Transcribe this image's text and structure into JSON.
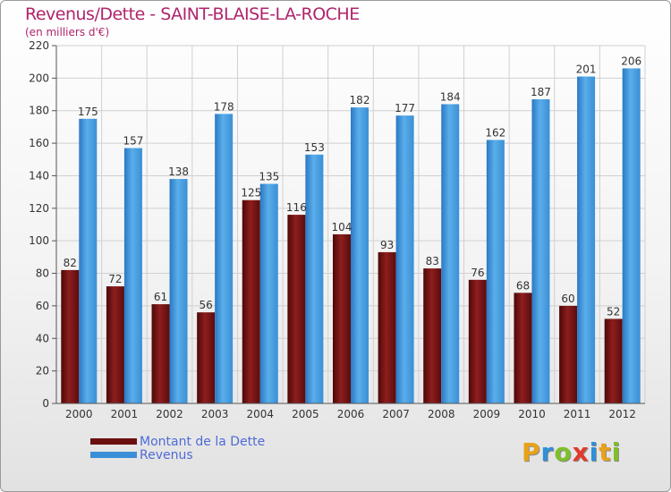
{
  "chart_data": {
    "type": "bar",
    "title": "Revenus/Dette - SAINT-BLAISE-LA-ROCHE",
    "subtitle": "(en milliers d'€)",
    "xlabel": "",
    "ylabel": "",
    "ylim": [
      0,
      220
    ],
    "yticks": [
      0,
      20,
      40,
      60,
      80,
      100,
      120,
      140,
      160,
      180,
      200,
      220
    ],
    "categories": [
      "2000",
      "2001",
      "2002",
      "2003",
      "2004",
      "2005",
      "2006",
      "2007",
      "2008",
      "2009",
      "2010",
      "2011",
      "2012"
    ],
    "series": [
      {
        "name": "Montant de la Dette",
        "color": "#8b1a1a",
        "values": [
          82,
          72,
          61,
          56,
          125,
          116,
          104,
          93,
          83,
          76,
          68,
          60,
          52
        ]
      },
      {
        "name": "Revenus",
        "color": "#3b8fd8",
        "values": [
          175,
          157,
          138,
          178,
          135,
          153,
          182,
          177,
          184,
          162,
          187,
          201,
          206
        ]
      }
    ],
    "grid": true,
    "legend_position": "bottom-left"
  },
  "legend": {
    "items": [
      {
        "label": "Montant de la Dette",
        "color": "#6b0f0f"
      },
      {
        "label": "Revenus",
        "color": "#3b8fd8"
      }
    ]
  },
  "logo": {
    "letters": [
      "P",
      "r",
      "o",
      "x",
      "i",
      "t",
      "i"
    ],
    "colors": [
      "#e8a21a",
      "#2f8fd8",
      "#7fbf2a",
      "#e23a2a",
      "#2f8fd8",
      "#e8a21a",
      "#7fbf2a"
    ]
  }
}
